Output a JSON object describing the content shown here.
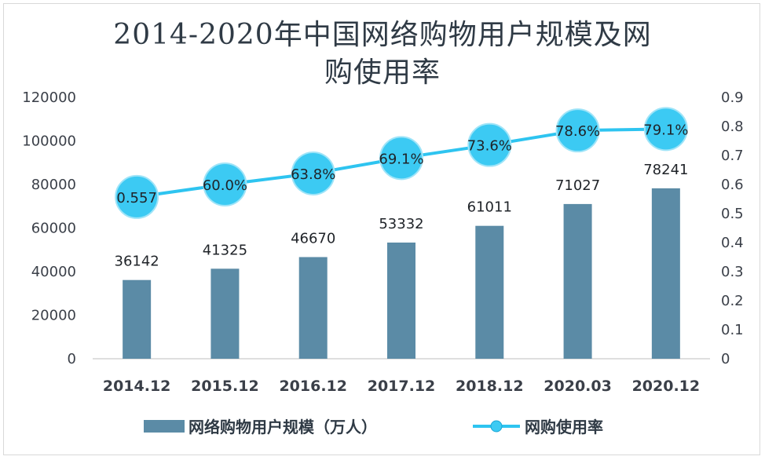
{
  "chart_data": {
    "type": "bar",
    "title_lines": [
      "2014-2020年中国网络购物用户规模及网",
      "购使用率"
    ],
    "categories": [
      "2014.12",
      "2015.12",
      "2016.12",
      "2017.12",
      "2018.12",
      "2020.03",
      "2020.12"
    ],
    "series": [
      {
        "name": "网络购物用户规模（万人）",
        "kind": "bar",
        "axis": "left",
        "values": [
          36142,
          41325,
          46670,
          53332,
          61011,
          71027,
          78241
        ],
        "labels": [
          "36142",
          "41325",
          "46670",
          "53332",
          "61011",
          "71027",
          "78241"
        ]
      },
      {
        "name": "网购使用率",
        "kind": "line",
        "axis": "right",
        "values": [
          0.557,
          0.6,
          0.638,
          0.691,
          0.736,
          0.786,
          0.791
        ],
        "labels": [
          "0.557",
          "60.0%",
          "63.8%",
          "69.1%",
          "73.6%",
          "78.6%",
          "79.1%"
        ]
      }
    ],
    "left_axis": {
      "min": 0,
      "max": 120000,
      "ticks": [
        0,
        20000,
        40000,
        60000,
        80000,
        100000,
        120000
      ],
      "tick_labels": [
        "0",
        "20000",
        "40000",
        "60000",
        "80000",
        "100000",
        "120000"
      ]
    },
    "right_axis": {
      "min": 0,
      "max": 0.9,
      "ticks": [
        0,
        0.1,
        0.2,
        0.3,
        0.4,
        0.5,
        0.6,
        0.7,
        0.8,
        0.9
      ],
      "tick_labels": [
        "0",
        "0.1",
        "0.2",
        "0.3",
        "0.4",
        "0.5",
        "0.6",
        "0.7",
        "0.8",
        "0.9"
      ]
    },
    "legend_position": "bottom",
    "grid": false,
    "colors": {
      "bar": "#5b8ba6",
      "line": "#2ec4f0",
      "marker": "#3ccaf3",
      "axis": "#bfbfbf"
    }
  }
}
